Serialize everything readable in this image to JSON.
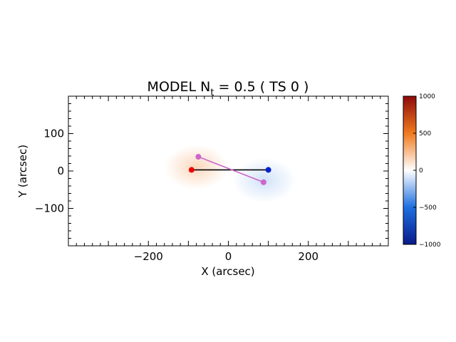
{
  "chart_data": [
    {
      "type": "heatmap",
      "title_main": "MODEL N",
      "title_sub": "t",
      "title_rest": " = 0.5 ( TS 0 )",
      "xlabel": "X (arcsec)",
      "ylabel": "Y (arcsec)",
      "xlim": [
        -400,
        400
      ],
      "ylim": [
        -200,
        200
      ],
      "x_ticks": [
        {
          "value": -200,
          "label": "−200"
        },
        {
          "value": 0,
          "label": "0"
        },
        {
          "value": 200,
          "label": "200"
        }
      ],
      "y_ticks": [
        {
          "value": -100,
          "label": "−100"
        },
        {
          "value": 0,
          "label": "0"
        },
        {
          "value": 100,
          "label": "100"
        }
      ],
      "field_blobs": [
        {
          "x": -80,
          "y": 10,
          "sx": 80,
          "sy": 60,
          "value": 150
        },
        {
          "x": 90,
          "y": -25,
          "sx": 80,
          "sy": 60,
          "value": -100
        }
      ],
      "segments": [
        {
          "from": [
            -92,
            3
          ],
          "to": [
            100,
            3
          ],
          "color": "#000000"
        },
        {
          "from": [
            -75,
            38
          ],
          "to": [
            88,
            -30
          ],
          "color": "#cc66cc"
        }
      ],
      "points": [
        {
          "x": -92,
          "y": 3,
          "color": "#ee0000"
        },
        {
          "x": 100,
          "y": 3,
          "color": "#0022cc"
        },
        {
          "x": -75,
          "y": 38,
          "color": "#cc66cc"
        },
        {
          "x": 88,
          "y": -30,
          "color": "#cc66cc"
        }
      ],
      "grid": false
    },
    {
      "type": "colorbar",
      "range": [
        -1000,
        1000
      ],
      "ticks": [
        {
          "value": 1000,
          "label": "1000"
        },
        {
          "value": 500,
          "label": "500"
        },
        {
          "value": 0,
          "label": "0"
        },
        {
          "value": -500,
          "label": "−500"
        },
        {
          "value": -1000,
          "label": "−1000"
        }
      ],
      "colormap": [
        {
          "value": -1000,
          "color": "#0a1a8a"
        },
        {
          "value": -500,
          "color": "#1e6fe0"
        },
        {
          "value": 0,
          "color": "#ffffff"
        },
        {
          "value": 500,
          "color": "#f07a1e"
        },
        {
          "value": 1000,
          "color": "#8e0a0a"
        }
      ]
    }
  ]
}
